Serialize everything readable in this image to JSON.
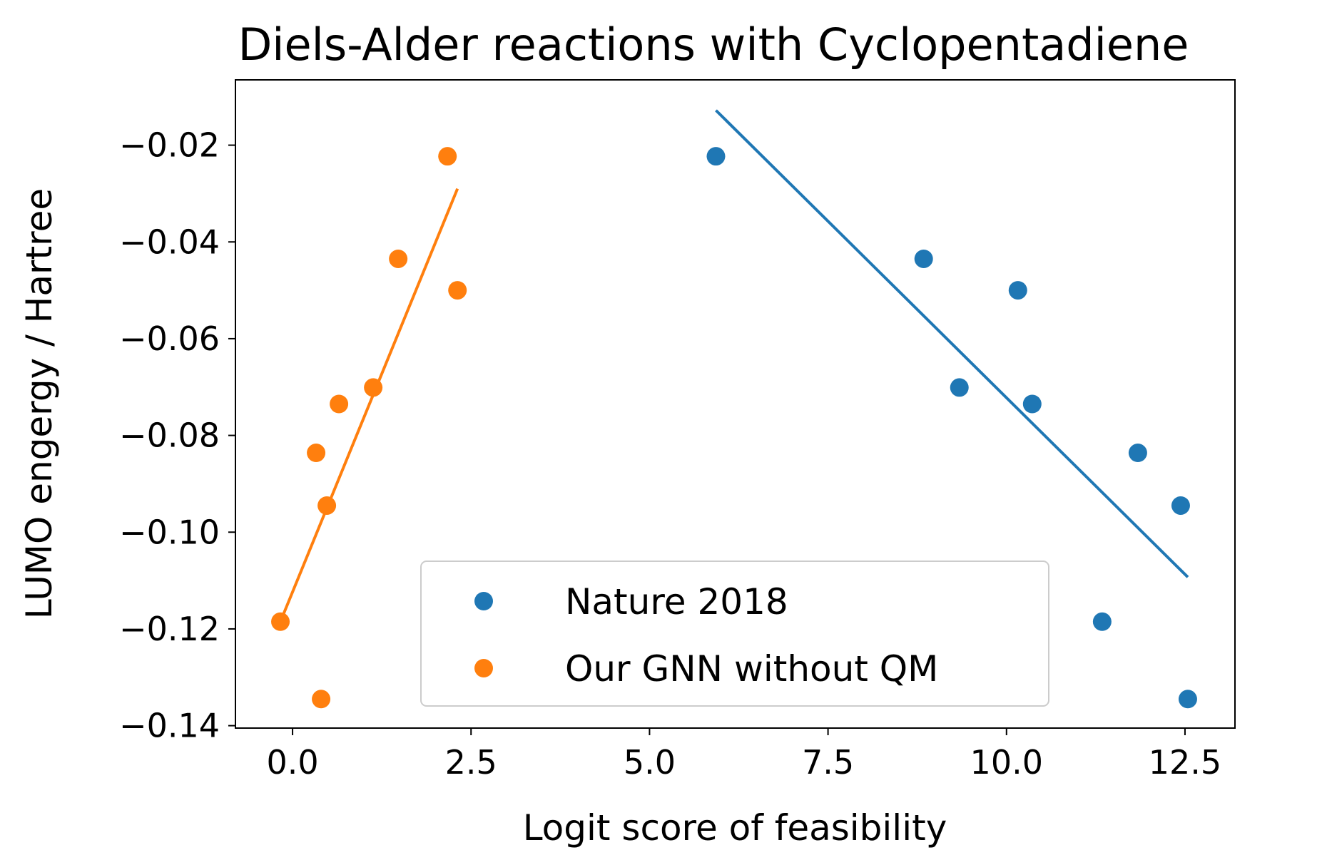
{
  "chart_data": {
    "type": "scatter",
    "title": "Diels-Alder reactions with Cyclopentadiene",
    "xlabel": "Logit score of feasibility",
    "ylabel": "LUMO engergy / Hartree",
    "xlim": [
      -0.8,
      13.2
    ],
    "ylim": [
      -0.1405,
      -0.0065
    ],
    "xticks": [
      0.0,
      2.5,
      5.0,
      7.5,
      10.0,
      12.5
    ],
    "xtick_labels": [
      "0.0",
      "2.5",
      "5.0",
      "7.5",
      "10.0",
      "12.5"
    ],
    "yticks": [
      -0.02,
      -0.04,
      -0.06,
      -0.08,
      -0.1,
      -0.12,
      -0.14
    ],
    "ytick_labels": [
      "−0.02",
      "−0.04",
      "−0.06",
      "−0.08",
      "−0.10",
      "−0.12",
      "−0.14"
    ],
    "grid": false,
    "legend_position": "lower-center",
    "series": [
      {
        "name": "Nature 2018",
        "color": "#1f77b4",
        "points": [
          {
            "x": 5.93,
            "y": -0.0223
          },
          {
            "x": 8.84,
            "y": -0.0435
          },
          {
            "x": 9.34,
            "y": -0.0701
          },
          {
            "x": 10.16,
            "y": -0.05
          },
          {
            "x": 10.36,
            "y": -0.0735
          },
          {
            "x": 11.34,
            "y": -0.1185
          },
          {
            "x": 11.84,
            "y": -0.0836
          },
          {
            "x": 12.44,
            "y": -0.0945
          },
          {
            "x": 12.54,
            "y": -0.1345
          }
        ],
        "fit_line": {
          "x": [
            5.93,
            12.54
          ],
          "y": [
            -0.0128,
            -0.1093
          ]
        }
      },
      {
        "name": "Our GNN without QM",
        "color": "#ff7f0e",
        "points": [
          {
            "x": -0.17,
            "y": -0.1185
          },
          {
            "x": 0.33,
            "y": -0.0836
          },
          {
            "x": 0.4,
            "y": -0.1345
          },
          {
            "x": 0.48,
            "y": -0.0945
          },
          {
            "x": 0.65,
            "y": -0.0735
          },
          {
            "x": 1.13,
            "y": -0.0701
          },
          {
            "x": 1.48,
            "y": -0.0435
          },
          {
            "x": 2.17,
            "y": -0.0223
          },
          {
            "x": 2.31,
            "y": -0.05
          }
        ],
        "fit_line": {
          "x": [
            -0.17,
            2.31
          ],
          "y": [
            -0.1185,
            -0.029
          ]
        }
      }
    ]
  }
}
